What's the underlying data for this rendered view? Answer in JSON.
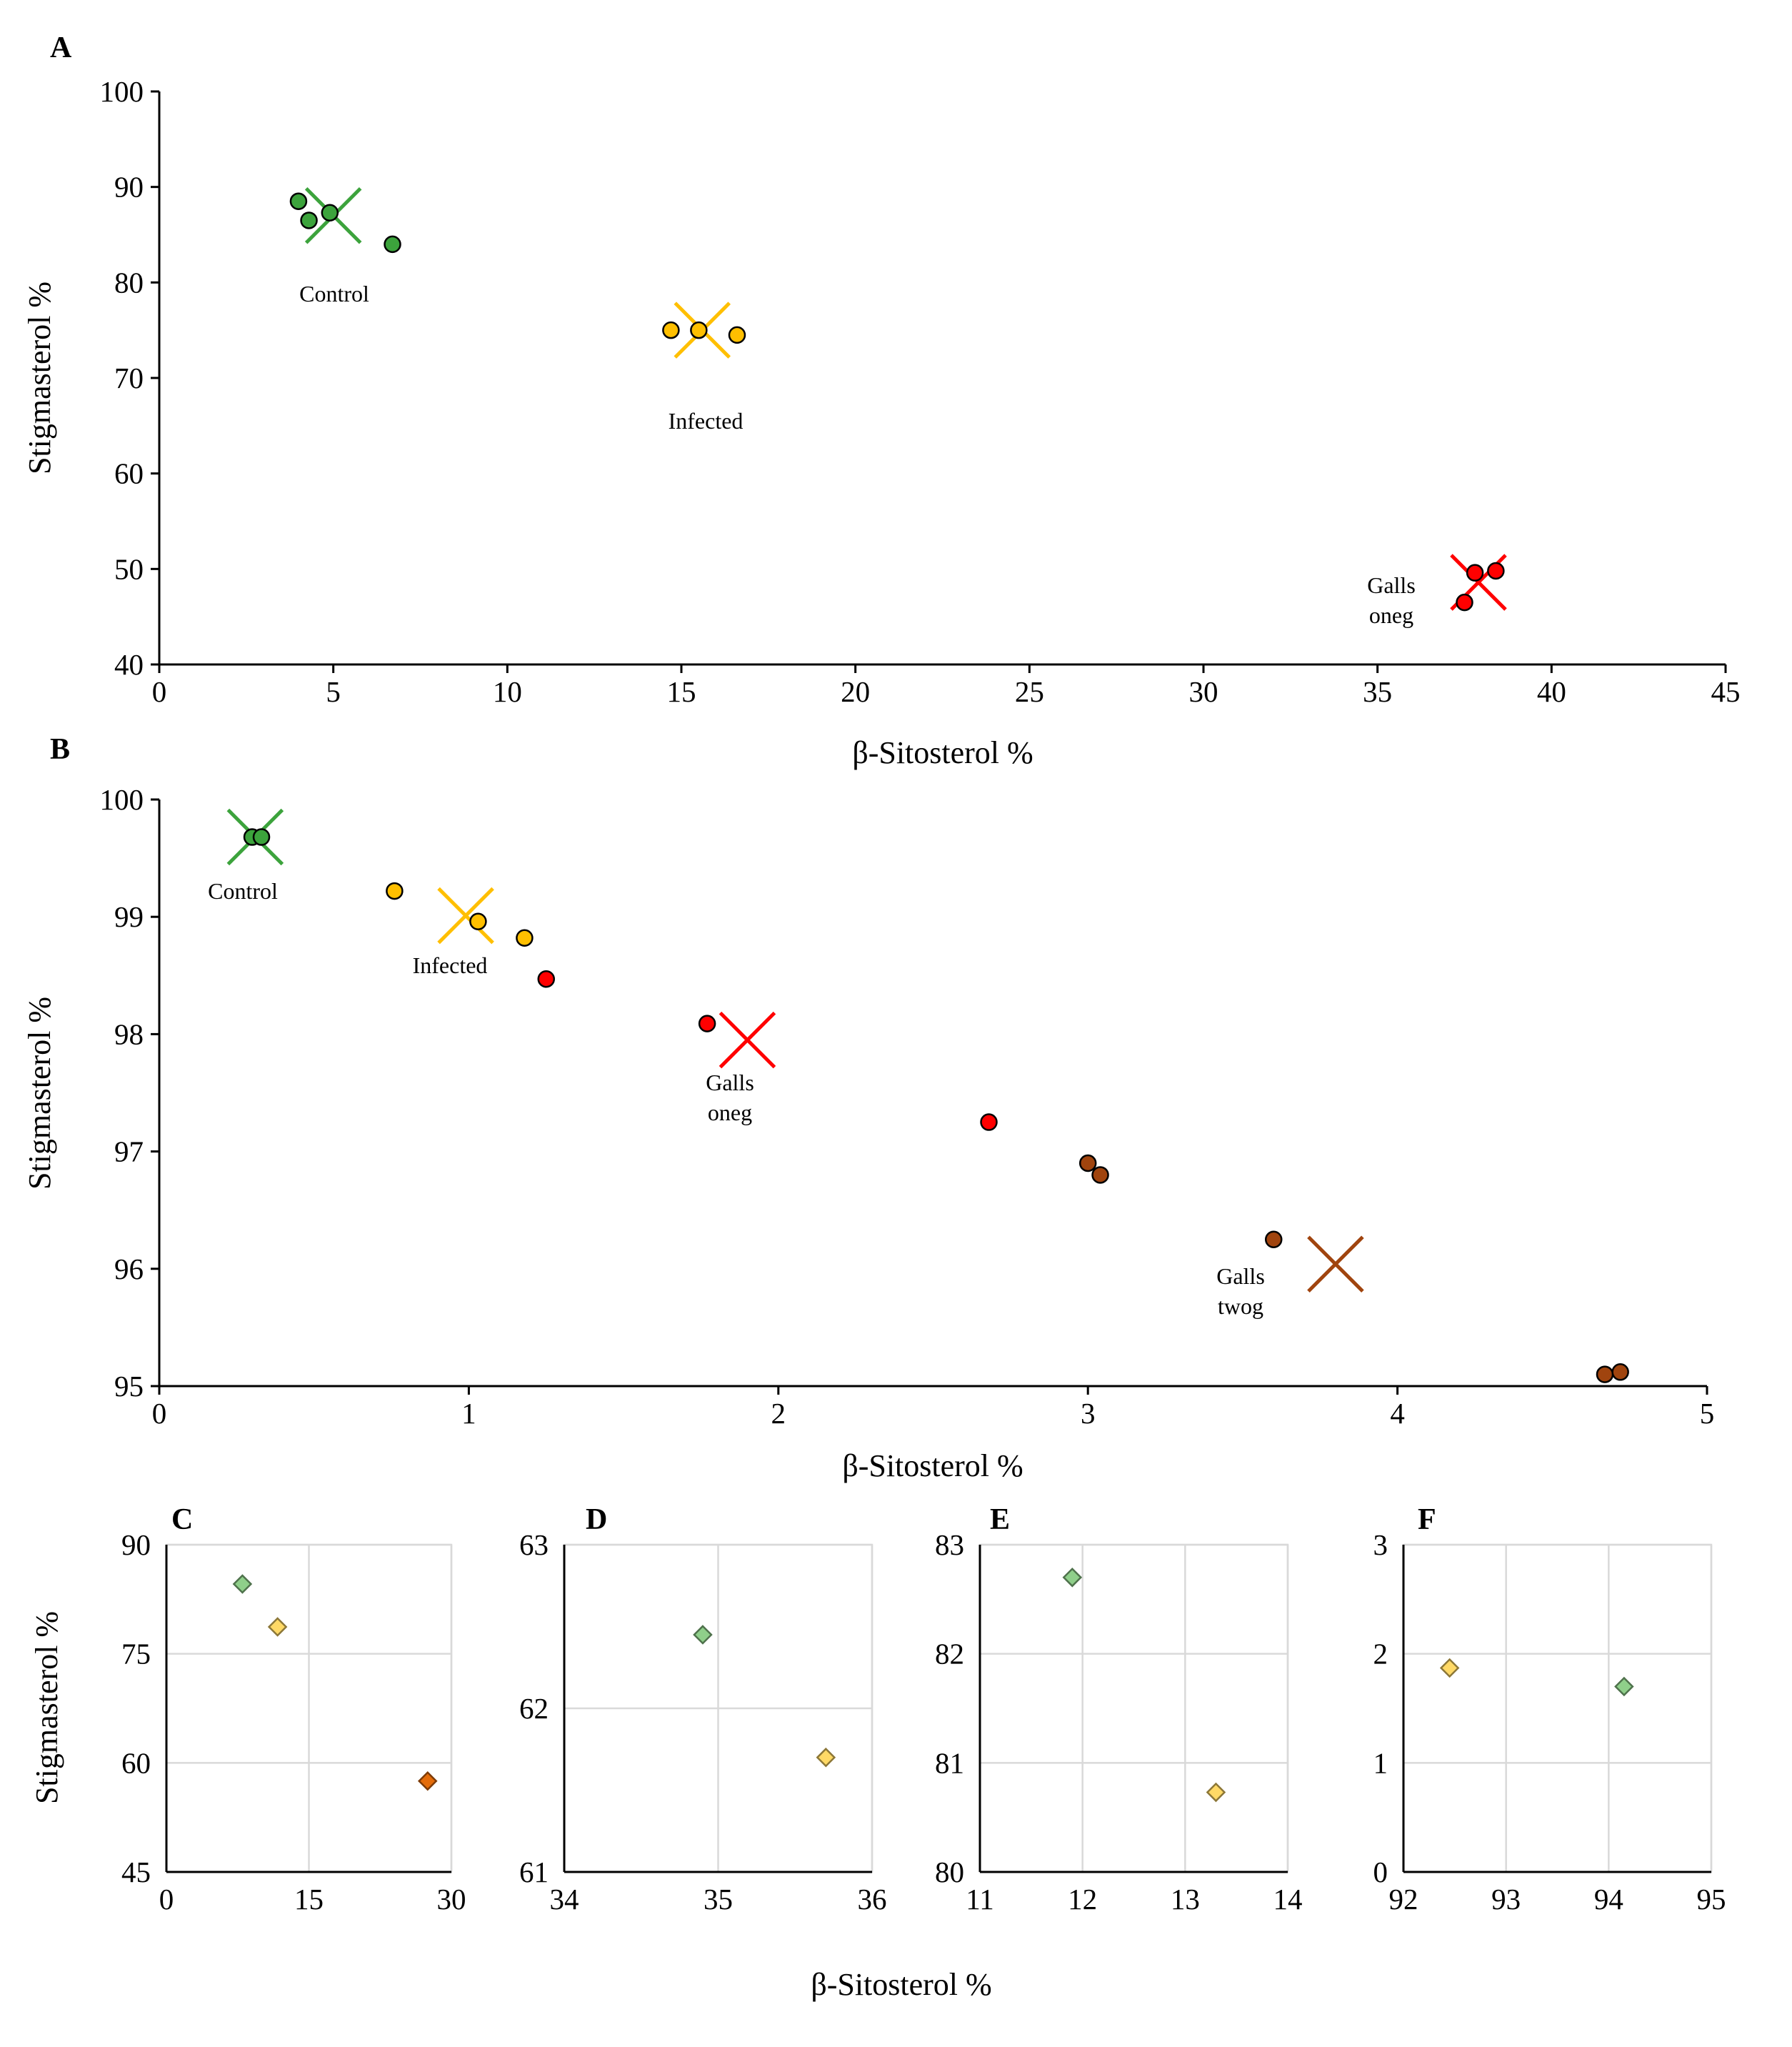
{
  "chart_data": [
    {
      "panel": "A",
      "type": "scatter",
      "xlabel": "β-Sitosterol  %",
      "ylabel": "Stigmasterol %",
      "xlim": [
        0,
        45
      ],
      "ylim": [
        40,
        100
      ],
      "xticks": [
        0,
        5,
        10,
        15,
        20,
        25,
        30,
        35,
        40,
        45
      ],
      "yticks": [
        40,
        50,
        60,
        70,
        80,
        90,
        100
      ],
      "grid": false,
      "series": [
        {
          "name": "Control",
          "color": "#3ca33c",
          "labels": [
            "Control"
          ],
          "points": [
            [
              4.0,
              88.5
            ],
            [
              4.3,
              86.5
            ],
            [
              4.9,
              87.3
            ],
            [
              6.7,
              84.0
            ]
          ],
          "centroid": [
            5.0,
            87.0
          ]
        },
        {
          "name": "Infected",
          "color": "#ffbf00",
          "labels": [
            "Infected"
          ],
          "points": [
            [
              14.7,
              75.0
            ],
            [
              15.5,
              75.0
            ],
            [
              16.6,
              74.5
            ]
          ],
          "centroid": [
            15.6,
            75.0
          ]
        },
        {
          "name": "Galls oneg",
          "color": "#ff0000",
          "labels": [
            "Galls",
            "oneg"
          ],
          "points": [
            [
              37.5,
              46.5
            ],
            [
              37.8,
              49.6
            ],
            [
              38.4,
              49.8
            ]
          ],
          "centroid": [
            37.9,
            48.6
          ]
        }
      ]
    },
    {
      "panel": "B",
      "type": "scatter",
      "xlabel": "β-Sitosterol  %",
      "ylabel": "Stigmasterol %",
      "xlim": [
        0,
        5
      ],
      "ylim": [
        95,
        100
      ],
      "xticks": [
        0,
        1,
        2,
        3,
        4,
        5
      ],
      "yticks": [
        95,
        96,
        97,
        98,
        99,
        100
      ],
      "grid": false,
      "series": [
        {
          "name": "Control",
          "color": "#3ca33c",
          "labels": [
            "Control"
          ],
          "points": [
            [
              0.3,
              99.68
            ],
            [
              0.33,
              99.68
            ]
          ],
          "centroid": [
            0.31,
            99.68
          ]
        },
        {
          "name": "Infected",
          "color": "#ffbf00",
          "labels": [
            "Infected"
          ],
          "points": [
            [
              0.76,
              99.22
            ],
            [
              1.03,
              98.96
            ],
            [
              1.18,
              98.82
            ]
          ],
          "centroid": [
            0.99,
            99.01
          ]
        },
        {
          "name": "Galls oneg",
          "color": "#ff0000",
          "labels": [
            "Galls",
            "oneg"
          ],
          "points": [
            [
              1.25,
              98.47
            ],
            [
              1.77,
              98.09
            ],
            [
              2.68,
              97.25
            ]
          ],
          "centroid": [
            1.9,
            97.95
          ]
        },
        {
          "name": "Galls twog",
          "color": "#a0440e",
          "labels": [
            "Galls",
            "twog"
          ],
          "points": [
            [
              3.0,
              96.9
            ],
            [
              3.04,
              96.8
            ],
            [
              3.6,
              96.25
            ],
            [
              4.67,
              95.1
            ],
            [
              4.72,
              95.12
            ]
          ],
          "centroid": [
            3.8,
            96.04
          ]
        }
      ]
    },
    {
      "panel": "C",
      "type": "scatter",
      "ylabel": "Stigmasterol %",
      "xlim": [
        0,
        30
      ],
      "ylim": [
        45,
        90
      ],
      "xticks": [
        0,
        15,
        30
      ],
      "yticks": [
        45,
        60,
        75,
        90
      ],
      "grid": true,
      "points": [
        {
          "x": 8.0,
          "y": 84.6,
          "color": "#8fcf8a"
        },
        {
          "x": 11.7,
          "y": 78.7,
          "color": "#ffd966"
        },
        {
          "x": 27.5,
          "y": 57.5,
          "color": "#e46c0a"
        }
      ]
    },
    {
      "panel": "D",
      "type": "scatter",
      "xlim": [
        34,
        36
      ],
      "ylim": [
        61,
        63
      ],
      "xticks": [
        34,
        35,
        36
      ],
      "yticks": [
        61,
        62,
        63
      ],
      "grid": true,
      "points": [
        {
          "x": 34.9,
          "y": 62.45,
          "color": "#8fcf8a"
        },
        {
          "x": 35.7,
          "y": 61.7,
          "color": "#ffd966"
        }
      ]
    },
    {
      "panel": "E",
      "type": "scatter",
      "xlim": [
        11,
        14
      ],
      "ylim": [
        80,
        83
      ],
      "xticks": [
        11,
        12,
        13,
        14
      ],
      "yticks": [
        80,
        81,
        82,
        83
      ],
      "grid": true,
      "points": [
        {
          "x": 11.9,
          "y": 82.7,
          "color": "#8fcf8a"
        },
        {
          "x": 13.3,
          "y": 80.73,
          "color": "#ffd966"
        }
      ]
    },
    {
      "panel": "F",
      "type": "scatter",
      "xlim": [
        92,
        95
      ],
      "ylim": [
        0,
        3
      ],
      "xticks": [
        92,
        93,
        94,
        95
      ],
      "yticks": [
        0,
        1,
        2,
        3
      ],
      "grid": true,
      "points": [
        {
          "x": 92.45,
          "y": 1.87,
          "color": "#ffd966"
        },
        {
          "x": 94.15,
          "y": 1.7,
          "color": "#8fcf8a"
        }
      ]
    }
  ],
  "shared_xlabel": "β-Sitosterol %"
}
